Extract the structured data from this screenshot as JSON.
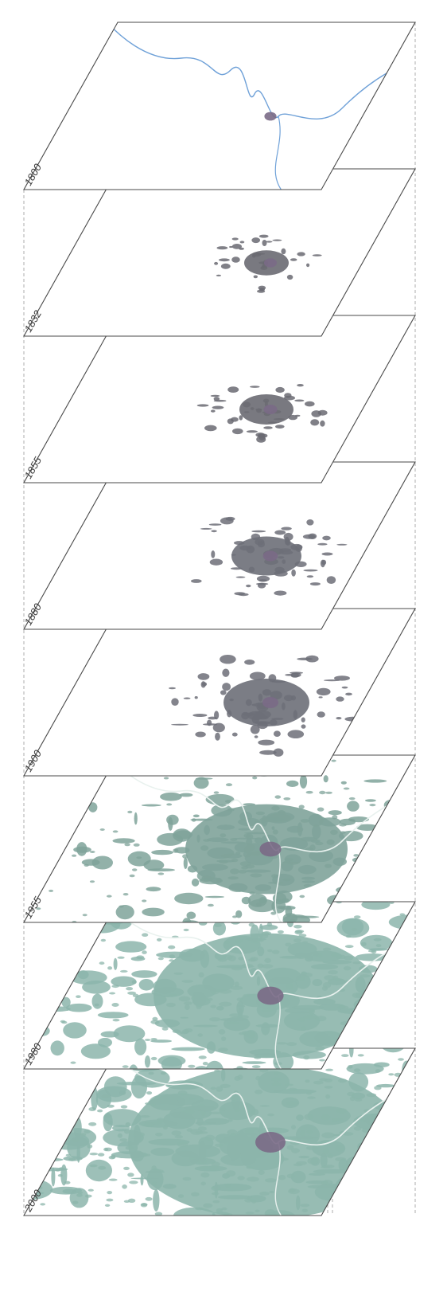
{
  "diagram": {
    "layers": [
      {
        "year": "1800",
        "fill": "none",
        "blob": 0.2
      },
      {
        "year": "1832",
        "fill": "#6a6a72",
        "blob": 0.35
      },
      {
        "year": "1855",
        "fill": "#6a6a72",
        "blob": 0.5
      },
      {
        "year": "1880",
        "fill": "#6d6f78",
        "blob": 0.75
      },
      {
        "year": "1900",
        "fill": "#6d6f78",
        "blob": 1.0
      },
      {
        "year": "1955",
        "fill": "#7fa39a",
        "blob": 2.2
      },
      {
        "year": "1980",
        "fill": "#8cb5ab",
        "blob": 3.2
      },
      {
        "year": "2000",
        "fill": "#8cb5ab",
        "blob": 4.0
      }
    ],
    "colors": {
      "frame": "#4a4a4a",
      "river": "#6fa1d8",
      "core": "#7a6a86",
      "guide": "#9a9a9a"
    }
  }
}
